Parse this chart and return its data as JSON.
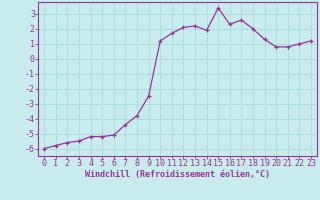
{
  "x": [
    0,
    1,
    2,
    3,
    4,
    5,
    6,
    7,
    8,
    9,
    10,
    11,
    12,
    13,
    14,
    15,
    16,
    17,
    18,
    19,
    20,
    21,
    22,
    23
  ],
  "y": [
    -6.0,
    -5.8,
    -5.6,
    -5.5,
    -5.2,
    -5.2,
    -5.1,
    -4.4,
    -3.8,
    -2.5,
    1.2,
    1.7,
    2.1,
    2.2,
    1.9,
    3.4,
    2.3,
    2.6,
    2.0,
    1.3,
    0.8,
    0.8,
    1.0,
    1.2
  ],
  "line_color": "#993399",
  "marker": "+",
  "marker_size": 3,
  "bg_color": "#c8ecec",
  "grid_color": "#aadddd",
  "axis_color": "#993399",
  "tick_color": "#993399",
  "xlabel": "Windchill (Refroidissement éolien,°C)",
  "ylabel": "",
  "title": "",
  "ylim": [
    -6.5,
    3.8
  ],
  "xlim": [
    -0.5,
    23.5
  ],
  "yticks": [
    3,
    2,
    1,
    0,
    -1,
    -2,
    -3,
    -4,
    -5,
    -6
  ],
  "xticks": [
    0,
    1,
    2,
    3,
    4,
    5,
    6,
    7,
    8,
    9,
    10,
    11,
    12,
    13,
    14,
    15,
    16,
    17,
    18,
    19,
    20,
    21,
    22,
    23
  ],
  "xlabel_fontsize": 6,
  "tick_fontsize": 6,
  "line_width": 0.9
}
